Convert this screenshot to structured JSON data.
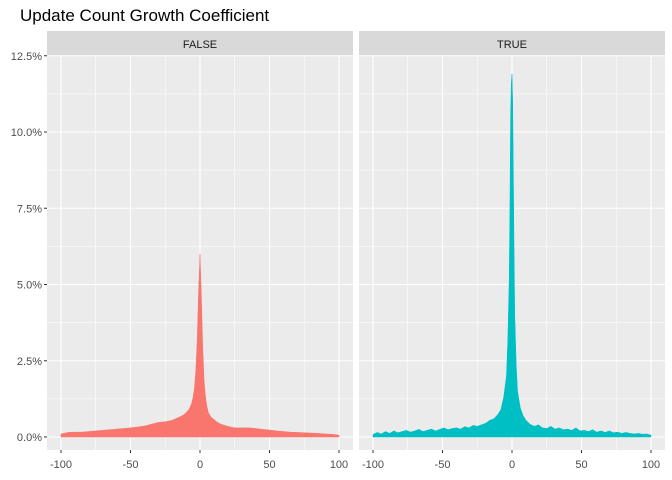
{
  "chart_data": {
    "type": "area",
    "title": "Update Count Growth Coefficient",
    "xlabel": "",
    "ylabel": "",
    "xlim": [
      -100,
      100
    ],
    "ylim": [
      0,
      12.5
    ],
    "x_ticks": [
      -100,
      -50,
      0,
      50,
      100
    ],
    "x_tick_labels": [
      "-100",
      "-50",
      "0",
      "50",
      "100"
    ],
    "y_ticks": [
      0,
      2.5,
      5.0,
      7.5,
      10.0,
      12.5
    ],
    "y_tick_labels": [
      "0.0%",
      "2.5%",
      "5.0%",
      "7.5%",
      "10.0%",
      "12.5%"
    ],
    "y_unit": "percent",
    "grid": true,
    "legend": "none",
    "facets": [
      {
        "label": "FALSE",
        "color": "#F8766D",
        "x": [
          -100,
          -95,
          -90,
          -85,
          -80,
          -75,
          -70,
          -65,
          -60,
          -55,
          -50,
          -45,
          -40,
          -35,
          -30,
          -25,
          -20,
          -15,
          -12,
          -10,
          -8,
          -6,
          -5,
          -4,
          -3,
          -2,
          -1,
          0,
          1,
          2,
          3,
          4,
          5,
          6,
          8,
          10,
          12,
          15,
          20,
          25,
          30,
          35,
          40,
          45,
          50,
          55,
          60,
          65,
          70,
          75,
          80,
          85,
          90,
          95,
          100
        ],
        "y": [
          0.1,
          0.15,
          0.16,
          0.16,
          0.18,
          0.2,
          0.22,
          0.24,
          0.26,
          0.28,
          0.3,
          0.33,
          0.36,
          0.42,
          0.48,
          0.5,
          0.55,
          0.65,
          0.72,
          0.8,
          0.9,
          1.1,
          1.3,
          1.6,
          2.2,
          3.2,
          4.8,
          6.0,
          4.6,
          2.9,
          1.8,
          1.3,
          1.0,
          0.8,
          0.65,
          0.58,
          0.5,
          0.42,
          0.35,
          0.3,
          0.3,
          0.3,
          0.28,
          0.25,
          0.23,
          0.2,
          0.18,
          0.16,
          0.15,
          0.14,
          0.13,
          0.12,
          0.1,
          0.09,
          0.06
        ]
      },
      {
        "label": "TRUE",
        "color": "#00BFC4",
        "x": [
          -100,
          -97,
          -94,
          -91,
          -88,
          -85,
          -82,
          -79,
          -76,
          -73,
          -70,
          -67,
          -64,
          -61,
          -58,
          -55,
          -52,
          -49,
          -46,
          -43,
          -40,
          -37,
          -34,
          -31,
          -28,
          -25,
          -22,
          -19,
          -16,
          -13,
          -10,
          -8,
          -6,
          -4,
          -3,
          -2,
          -1.5,
          -1,
          -0.5,
          0,
          0.5,
          1,
          1.5,
          2,
          3,
          4,
          6,
          8,
          10,
          13,
          16,
          19,
          22,
          25,
          28,
          31,
          34,
          37,
          40,
          43,
          46,
          49,
          52,
          55,
          58,
          61,
          64,
          67,
          70,
          73,
          76,
          79,
          82,
          85,
          88,
          91,
          94,
          97,
          100
        ],
        "y": [
          0.08,
          0.15,
          0.1,
          0.18,
          0.12,
          0.2,
          0.14,
          0.18,
          0.22,
          0.16,
          0.2,
          0.25,
          0.18,
          0.22,
          0.26,
          0.2,
          0.25,
          0.3,
          0.24,
          0.28,
          0.3,
          0.26,
          0.34,
          0.3,
          0.38,
          0.35,
          0.4,
          0.45,
          0.55,
          0.6,
          0.75,
          0.9,
          1.3,
          2.0,
          3.2,
          5.2,
          7.5,
          10.5,
          11.6,
          11.9,
          11.0,
          8.5,
          6.0,
          4.0,
          2.4,
          1.5,
          0.95,
          0.7,
          0.55,
          0.42,
          0.35,
          0.4,
          0.3,
          0.28,
          0.35,
          0.26,
          0.3,
          0.24,
          0.26,
          0.22,
          0.3,
          0.2,
          0.22,
          0.18,
          0.24,
          0.16,
          0.2,
          0.15,
          0.2,
          0.14,
          0.16,
          0.12,
          0.15,
          0.12,
          0.1,
          0.12,
          0.09,
          0.1,
          0.06
        ]
      }
    ]
  }
}
